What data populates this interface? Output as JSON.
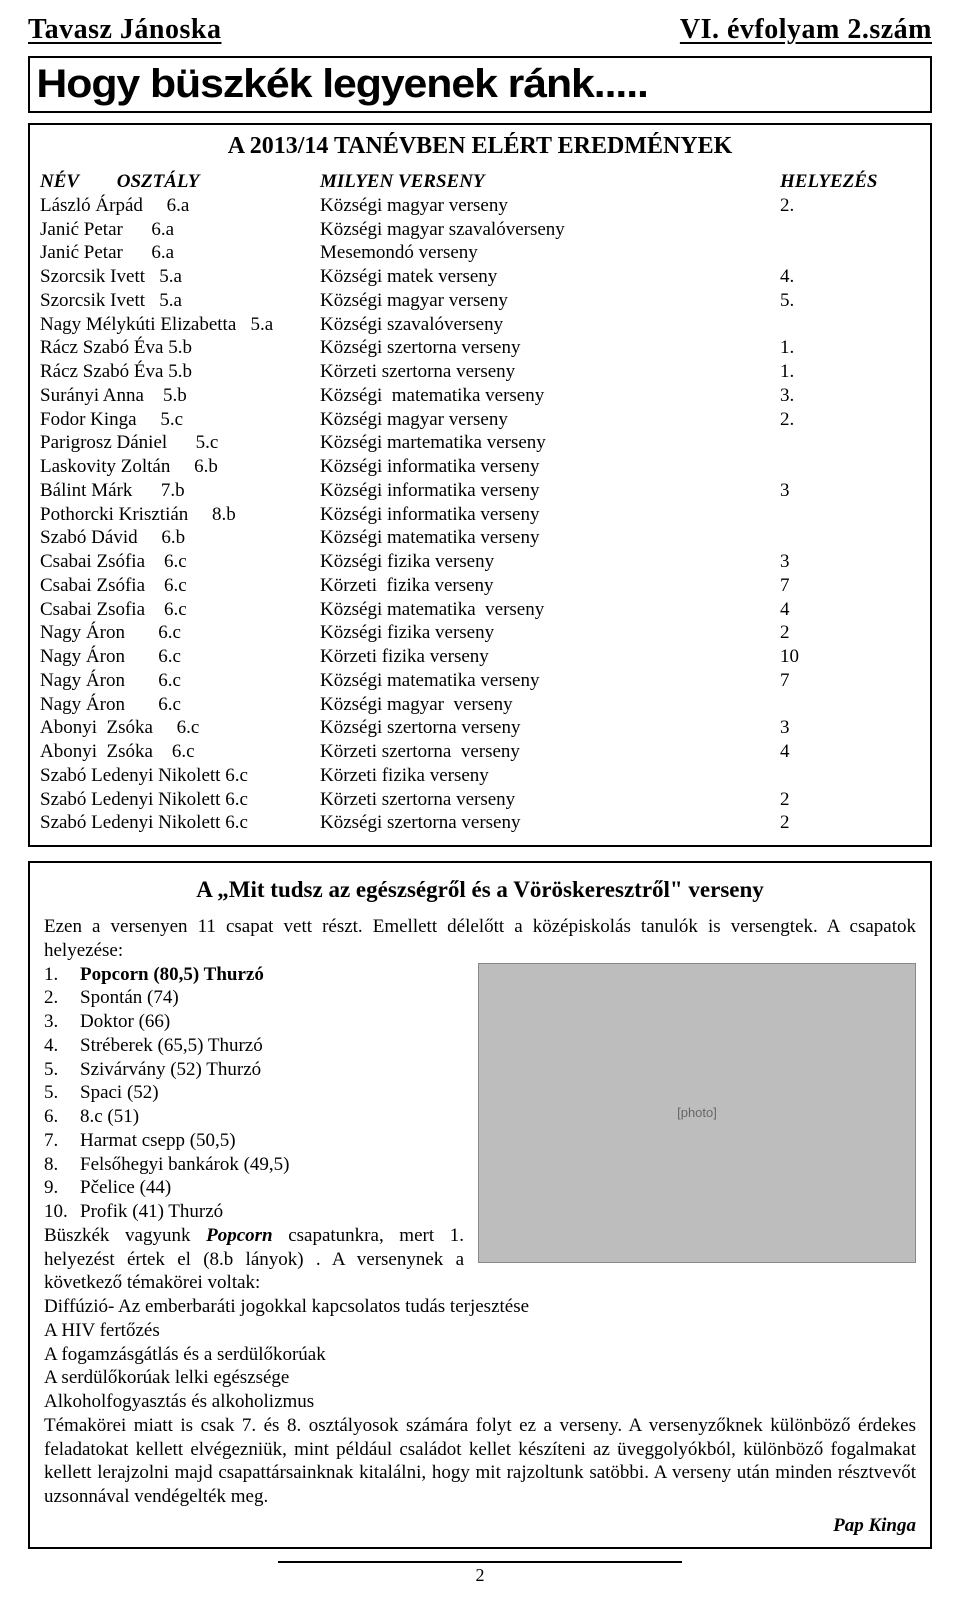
{
  "masthead": {
    "left": "Tavasz Jánoska",
    "right": "VI. évfolyam 2.szám"
  },
  "banner": "Hogy büszkék legyenek ránk.....",
  "results": {
    "title": "A 2013/14 TANÉVBEN ELÉRT EREDMÉNYEK",
    "header": {
      "name": "NÉV",
      "class": "OSZTÁLY",
      "comp": "MILYEN VERSENY",
      "place": "HELYEZÉS"
    },
    "rows": [
      {
        "left": "László Árpád     6.a",
        "mid": "Községi magyar verseny",
        "right": "2."
      },
      {
        "left": "Janić Petar      6.a",
        "mid": "Községi magyar szavalóverseny",
        "right": ""
      },
      {
        "left": "Janić Petar      6.a",
        "mid": "Mesemondó verseny",
        "right": ""
      },
      {
        "left": "Szorcsik Ivett   5.a",
        "mid": "Községi matek verseny",
        "right": "4."
      },
      {
        "left": "Szorcsik Ivett   5.a",
        "mid": "Községi magyar verseny",
        "right": "5."
      },
      {
        "left": "Nagy Mélykúti Elizabetta   5.a",
        "mid": "Községi szavalóverseny",
        "right": ""
      },
      {
        "left": "Rácz Szabó Éva 5.b",
        "mid": "Községi szertorna verseny",
        "right": "1."
      },
      {
        "left": "Rácz Szabó Éva 5.b",
        "mid": "Körzeti szertorna verseny",
        "right": "1."
      },
      {
        "left": "Surányi Anna    5.b",
        "mid": "Községi  matematika verseny",
        "right": "3."
      },
      {
        "left": "Fodor Kinga     5.c",
        "mid": "Községi magyar verseny",
        "right": "2."
      },
      {
        "left": "Parigrosz Dániel      5.c",
        "mid": "Községi martematika verseny",
        "right": ""
      },
      {
        "left": "Laskovity Zoltán     6.b",
        "mid": "Községi informatika verseny",
        "right": ""
      },
      {
        "left": "Bálint Márk      7.b",
        "mid": "Községi informatika verseny",
        "right": "3"
      },
      {
        "left": "Pothorcki Krisztián     8.b",
        "mid": "Községi informatika verseny",
        "right": ""
      },
      {
        "left": "Szabó Dávid     6.b",
        "mid": "Községi matematika verseny",
        "right": ""
      },
      {
        "left": "Csabai Zsófia    6.c",
        "mid": "Községi fizika verseny",
        "right": "3"
      },
      {
        "left": "Csabai Zsófia    6.c",
        "mid": "Körzeti  fizika verseny",
        "right": "7"
      },
      {
        "left": "Csabai Zsofia    6.c",
        "mid": "Községi matematika  verseny",
        "right": "4"
      },
      {
        "left": "Nagy Áron       6.c",
        "mid": "Községi fizika verseny",
        "right": "2"
      },
      {
        "left": "Nagy Áron       6.c",
        "mid": "Körzeti fizika verseny",
        "right": "10"
      },
      {
        "left": "Nagy Áron       6.c",
        "mid": "Községi matematika verseny",
        "right": "7"
      },
      {
        "left": "Nagy Áron       6.c",
        "mid": "Községi magyar  verseny",
        "right": ""
      },
      {
        "left": "Abonyi  Zsóka     6.c",
        "mid": "Községi szertorna verseny",
        "right": "3"
      },
      {
        "left": "Abonyi  Zsóka    6.c",
        "mid": "Körzeti szertorna  verseny",
        "right": "4"
      },
      {
        "left": "Szabó Ledenyi Nikolett 6.c",
        "mid": "Körzeti fizika verseny",
        "right": ""
      },
      {
        "left": "Szabó Ledenyi Nikolett 6.c",
        "mid": "Körzeti szertorna verseny",
        "right": "2"
      },
      {
        "left": "Szabó Ledenyi Nikolett 6.c",
        "mid": "Községi szertorna verseny",
        "right": "2"
      }
    ]
  },
  "contest": {
    "title": "A „Mit tudsz az egészségről és a Vöröskeresztről\" verseny",
    "intro": "Ezen a versenyen 11 csapat vett részt. Emellett délelőtt a középiskolás tanulók is versengtek. A csapatok helyezése:",
    "teams": [
      {
        "n": "1.",
        "name": "Popcorn (80,5) Thurzó",
        "bold": true
      },
      {
        "n": "2.",
        "name": "Spontán (74)"
      },
      {
        "n": "3.",
        "name": "Doktor (66)"
      },
      {
        "n": "4.",
        "name": "Stréberek (65,5) Thurzó"
      },
      {
        "n": "5.",
        "name": "Szivárvány (52) Thurzó"
      },
      {
        "n": "5.",
        "name": "Spaci (52)"
      },
      {
        "n": "6.",
        "name": "8.c (51)"
      },
      {
        "n": "7.",
        "name": "Harmat csepp (50,5)"
      },
      {
        "n": "8.",
        "name": "Felsőhegyi bankárok (49,5)"
      },
      {
        "n": "9.",
        "name": "Pčelice (44)"
      },
      {
        "n": "10.",
        "name": "Profik (41) Thurzó"
      }
    ],
    "after1a": "Büszkék vagyunk ",
    "after1b": "Popcorn",
    "after1c": " csapatunkra, mert 1. helyezést értek el (8.b lányok) . A versenynek a következő témakörei voltak:",
    "topics": [
      "Diffúzió- Az emberbaráti jogokkal kapcsolatos tudás terjesztése",
      " A HIV fertőzés",
      "A fogamzásgátlás és a serdülőkorúak",
      "A serdülőkorúak lelki egészsége",
      "Alkoholfogyasztás és alkoholizmus"
    ],
    "closing": "Témakörei miatt is csak 7. és 8. osztályosok számára folyt ez a verseny. A versenyzőknek különböző érdekes feladatokat kellett elvégezniük, mint például családot kellet készíteni az üveggolyókból, különböző fogalmakat kellett lerajzolni majd csapattársainknak kitalálni, hogy mit rajzoltunk satöbbi. A verseny után minden résztvevőt uzsonnával vendégelték meg.",
    "signature": "Pap Kinga",
    "photo_placeholder": "[photo]"
  },
  "page_number": "2"
}
